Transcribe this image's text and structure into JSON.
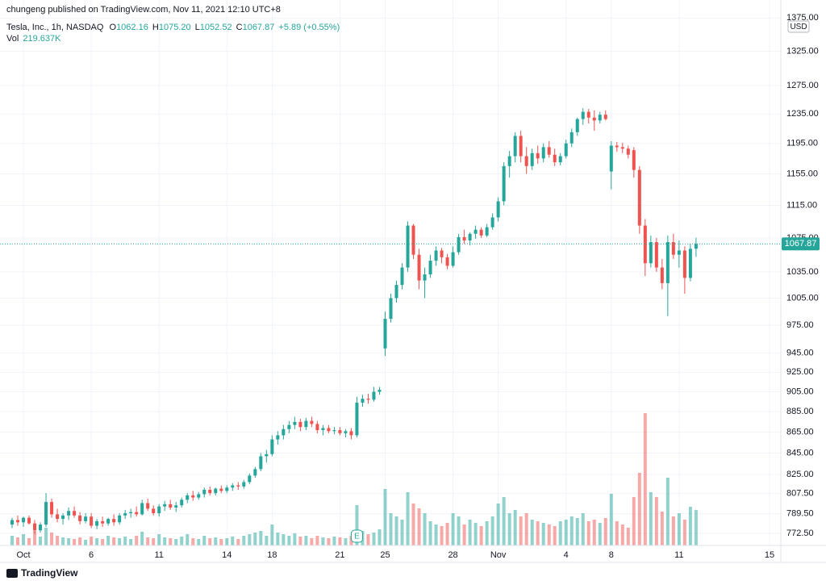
{
  "chart_data": {
    "type": "candlestick",
    "publisher_note": "chungeng published on TradingView.com, Nov 11, 2021 12:10 UTC+8",
    "title": "Tesla, Inc., 1h, NASDAQ",
    "legend": {
      "open_label": "O",
      "open": "1062.16",
      "high_label": "H",
      "high": "1075.20",
      "low_label": "L",
      "low": "1052.52",
      "close_label": "C",
      "close": "1067.87",
      "change": "+5.89 (+0.55%)",
      "volume_label": "Vol",
      "volume": "219.637K"
    },
    "currency": "USD",
    "last_price": 1067.87,
    "earnings_marker": "E",
    "footer": "TradingView",
    "up_color": "#26a69a",
    "down_color": "#ef5350",
    "log_scale": true,
    "grid": true,
    "xlim": [
      -1,
      136
    ],
    "xticks": [
      {
        "value": 2,
        "label": "Oct"
      },
      {
        "value": 14,
        "label": "6"
      },
      {
        "value": 26,
        "label": "11"
      },
      {
        "value": 38,
        "label": "14"
      },
      {
        "value": 46,
        "label": "18"
      },
      {
        "value": 58,
        "label": "21"
      },
      {
        "value": 66,
        "label": "25"
      },
      {
        "value": 78,
        "label": "28"
      },
      {
        "value": 86,
        "label": "Nov"
      },
      {
        "value": 98,
        "label": "4"
      },
      {
        "value": 106,
        "label": "8"
      },
      {
        "value": 118,
        "label": "11"
      },
      {
        "value": 134,
        "label": "15"
      }
    ],
    "ylim": [
      762,
      1403
    ],
    "yticks": [
      {
        "value": 772.5,
        "label": "772.50"
      },
      {
        "value": 789.5,
        "label": "789.50"
      },
      {
        "value": 807.5,
        "label": "807.50"
      },
      {
        "value": 825,
        "label": "825.00"
      },
      {
        "value": 845,
        "label": "845.00"
      },
      {
        "value": 865,
        "label": "865.00"
      },
      {
        "value": 885,
        "label": "885.00"
      },
      {
        "value": 905,
        "label": "905.00"
      },
      {
        "value": 925,
        "label": "925.00"
      },
      {
        "value": 945,
        "label": "945.00"
      },
      {
        "value": 975,
        "label": "975.00"
      },
      {
        "value": 1005,
        "label": "1005.00"
      },
      {
        "value": 1035,
        "label": "1035.00"
      },
      {
        "value": 1075,
        "label": "1075.00"
      },
      {
        "value": 1115,
        "label": "1115.00"
      },
      {
        "value": 1155,
        "label": "1155.00"
      },
      {
        "value": 1195,
        "label": "1195.00"
      },
      {
        "value": 1235,
        "label": "1235.00"
      },
      {
        "value": 1275,
        "label": "1275.00"
      },
      {
        "value": 1325,
        "label": "1325.00"
      },
      {
        "value": 1375,
        "label": "1375.00"
      }
    ],
    "open": [
      780,
      784,
      782,
      786,
      781,
      775,
      780,
      800,
      789,
      785,
      788,
      792,
      788,
      783,
      787,
      779,
      783,
      781,
      785,
      782,
      788,
      790,
      791,
      789,
      799,
      794,
      790,
      796,
      798,
      795,
      797,
      802,
      806,
      804,
      807,
      811,
      808,
      812,
      810,
      813,
      815,
      814,
      818,
      824,
      830,
      842,
      844,
      858,
      862,
      868,
      872,
      875,
      870,
      876,
      873,
      867,
      869,
      866,
      867,
      864,
      866,
      862,
      894,
      898,
      897,
      905,
      950,
      982,
      1005,
      1020,
      1040,
      1090,
      1055,
      1025,
      1032,
      1048,
      1060,
      1052,
      1042,
      1058,
      1076,
      1072,
      1080,
      1085,
      1078,
      1088,
      1100,
      1120,
      1165,
      1178,
      1205,
      1178,
      1165,
      1182,
      1175,
      1190,
      1180,
      1170,
      1178,
      1195,
      1210,
      1228,
      1238,
      1230,
      1226,
      1234,
      1158,
      1192,
      1190,
      1188,
      1186,
      1160,
      1090,
      1045,
      1070,
      1040,
      1022,
      1070,
      1055,
      1060,
      1028,
      1062.16
    ],
    "high": [
      786,
      788,
      787,
      788,
      784,
      782,
      808,
      803,
      794,
      790,
      795,
      796,
      791,
      790,
      790,
      785,
      787,
      786,
      789,
      790,
      793,
      794,
      796,
      802,
      803,
      797,
      798,
      801,
      802,
      800,
      804,
      808,
      810,
      809,
      813,
      814,
      813,
      815,
      815,
      817,
      818,
      820,
      826,
      832,
      845,
      848,
      862,
      866,
      872,
      876,
      880,
      878,
      879,
      880,
      876,
      872,
      872,
      870,
      870,
      868,
      869,
      900,
      902,
      903,
      910,
      910,
      990,
      1010,
      1025,
      1045,
      1095,
      1092,
      1062,
      1040,
      1055,
      1065,
      1063,
      1056,
      1065,
      1080,
      1085,
      1082,
      1090,
      1088,
      1092,
      1105,
      1125,
      1170,
      1185,
      1210,
      1212,
      1190,
      1188,
      1192,
      1195,
      1198,
      1188,
      1182,
      1200,
      1215,
      1230,
      1243,
      1242,
      1240,
      1238,
      1240,
      1198,
      1197,
      1196,
      1192,
      1190,
      1165,
      1098,
      1078,
      1075,
      1050,
      1078,
      1080,
      1072,
      1065,
      1068,
      1075.2
    ],
    "low": [
      777,
      779,
      778,
      780,
      772,
      773,
      778,
      786,
      782,
      780,
      784,
      786,
      780,
      781,
      777,
      776,
      778,
      779,
      779,
      780,
      785,
      786,
      787,
      788,
      792,
      788,
      787,
      792,
      793,
      791,
      795,
      799,
      801,
      802,
      804,
      806,
      806,
      808,
      808,
      810,
      811,
      812,
      816,
      822,
      828,
      836,
      842,
      853,
      858,
      864,
      868,
      866,
      867,
      870,
      864,
      862,
      864,
      863,
      862,
      860,
      858,
      860,
      890,
      893,
      895,
      902,
      942,
      978,
      1000,
      1015,
      1035,
      1050,
      1015,
      1005,
      1028,
      1042,
      1045,
      1038,
      1040,
      1055,
      1068,
      1066,
      1074,
      1075,
      1076,
      1085,
      1095,
      1115,
      1150,
      1170,
      1170,
      1155,
      1160,
      1168,
      1170,
      1176,
      1165,
      1166,
      1175,
      1190,
      1205,
      1220,
      1222,
      1212,
      1222,
      1226,
      1135,
      1184,
      1182,
      1175,
      1150,
      1080,
      1030,
      1040,
      1035,
      1015,
      985,
      1050,
      1040,
      1010,
      1024,
      1052.52
    ],
    "close": [
      784,
      782,
      786,
      781,
      775,
      780,
      800,
      789,
      785,
      788,
      792,
      788,
      783,
      787,
      779,
      783,
      781,
      785,
      782,
      788,
      790,
      791,
      789,
      799,
      794,
      790,
      796,
      798,
      795,
      797,
      802,
      806,
      804,
      807,
      811,
      808,
      812,
      810,
      813,
      815,
      814,
      818,
      824,
      830,
      842,
      844,
      858,
      862,
      868,
      872,
      875,
      870,
      876,
      873,
      867,
      869,
      866,
      867,
      864,
      866,
      862,
      894,
      898,
      897,
      905,
      907,
      982,
      1005,
      1020,
      1040,
      1090,
      1055,
      1025,
      1032,
      1048,
      1060,
      1052,
      1042,
      1058,
      1076,
      1072,
      1080,
      1085,
      1078,
      1088,
      1100,
      1120,
      1165,
      1178,
      1205,
      1178,
      1165,
      1182,
      1175,
      1190,
      1180,
      1170,
      1178,
      1195,
      1210,
      1228,
      1238,
      1230,
      1226,
      1234,
      1228,
      1192,
      1190,
      1188,
      1180,
      1160,
      1090,
      1045,
      1070,
      1040,
      1022,
      1070,
      1055,
      1060,
      1028,
      1062,
      1067.87
    ],
    "volume": [
      60000,
      50000,
      70000,
      45000,
      90000,
      55000,
      110000,
      80000,
      60000,
      50000,
      45000,
      40000,
      50000,
      35000,
      55000,
      45000,
      40000,
      60000,
      50000,
      45000,
      55000,
      40000,
      60000,
      85000,
      50000,
      45000,
      70000,
      50000,
      45000,
      40000,
      55000,
      70000,
      45000,
      40000,
      60000,
      45000,
      50000,
      40000,
      45000,
      55000,
      40000,
      60000,
      70000,
      80000,
      90000,
      60000,
      130000,
      80000,
      70000,
      60000,
      75000,
      55000,
      60000,
      45000,
      60000,
      50000,
      45000,
      55000,
      50000,
      45000,
      60000,
      250000,
      90000,
      70000,
      80000,
      100000,
      350000,
      200000,
      180000,
      160000,
      330000,
      260000,
      230000,
      200000,
      150000,
      130000,
      120000,
      140000,
      200000,
      180000,
      130000,
      160000,
      140000,
      120000,
      150000,
      180000,
      260000,
      300000,
      200000,
      220000,
      180000,
      200000,
      160000,
      150000,
      140000,
      130000,
      120000,
      150000,
      160000,
      180000,
      170000,
      200000,
      150000,
      160000,
      140000,
      170000,
      320000,
      150000,
      130000,
      110000,
      300000,
      450000,
      820000,
      330000,
      300000,
      210000,
      420000,
      180000,
      200000,
      160000,
      240000,
      219637
    ]
  }
}
